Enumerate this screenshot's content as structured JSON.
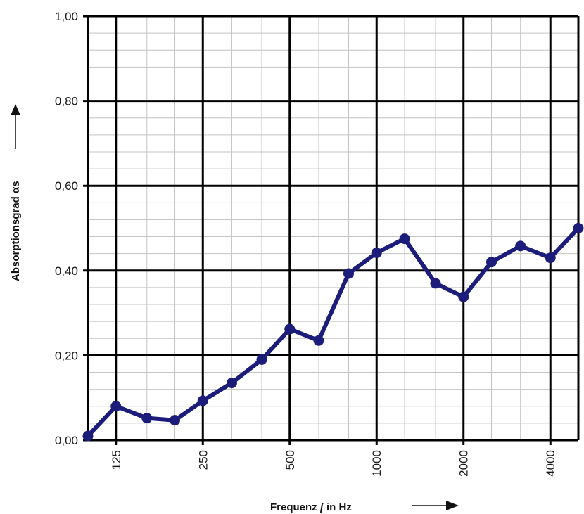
{
  "chart_data": {
    "type": "line",
    "title": "",
    "xlabel": "Frequenz f in Hz",
    "xlabel_parts": {
      "before": "Frequenz ",
      "symbol": "f",
      "after": " in Hz"
    },
    "ylabel": "Absorptionsgrad αs",
    "x_scale": "log",
    "x_ticks": [
      "125",
      "250",
      "500",
      "1000",
      "2000",
      "4000"
    ],
    "y_ticks": [
      "0,00",
      "0,20",
      "0,40",
      "0,60",
      "0,80",
      "1,00"
    ],
    "ylim": [
      0,
      1
    ],
    "xlim": [
      100,
      5000
    ],
    "grid": true,
    "legend": "none",
    "line_color": "#1c1c7a",
    "series": [
      {
        "x": [
          100,
          125,
          160,
          200,
          250,
          315,
          400,
          500,
          630,
          800,
          1000,
          1250,
          1600,
          2000,
          2500,
          3150,
          4000,
          5000
        ],
        "values": [
          0.01,
          0.08,
          0.052,
          0.047,
          0.093,
          0.135,
          0.19,
          0.262,
          0.235,
          0.393,
          0.442,
          0.475,
          0.37,
          0.338,
          0.42,
          0.458,
          0.43,
          0.5
        ]
      }
    ]
  }
}
